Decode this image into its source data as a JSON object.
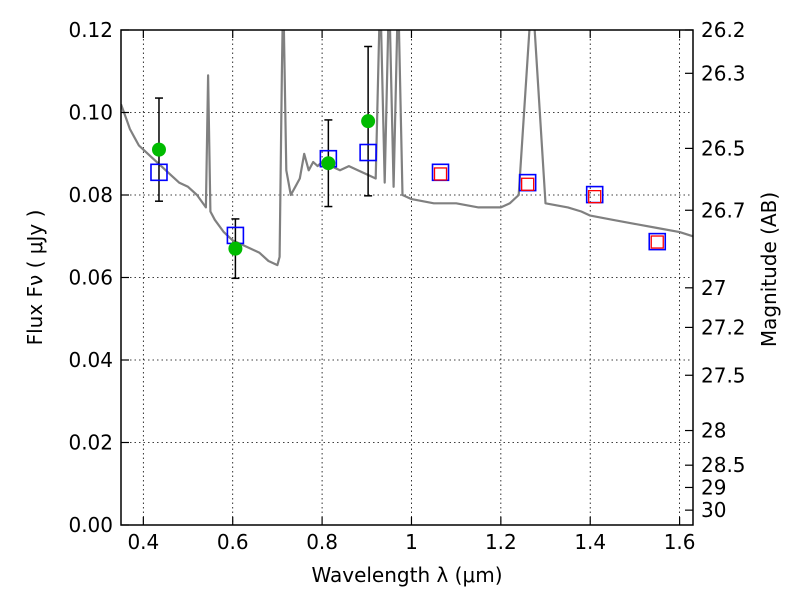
{
  "chart_data": {
    "type": "scatter",
    "xlabel": "Wavelength  λ (μm)",
    "ylabel": "Flux  Fν  ( μJy )",
    "ylabel_right": "Magnitude (AB)",
    "xlim": [
      0.35,
      1.63
    ],
    "ylim": [
      0.0,
      0.12
    ],
    "grid": true,
    "x_ticks": [
      0.4,
      0.6,
      0.8,
      1.0,
      1.2,
      1.4,
      1.6
    ],
    "x_tick_labels": [
      "0.4",
      "0.6",
      "0.8",
      "1",
      "1.2",
      "1.4",
      "1.6"
    ],
    "y_ticks": [
      0.0,
      0.02,
      0.04,
      0.06,
      0.08,
      0.1,
      0.12
    ],
    "y_tick_labels": [
      "0.00",
      "0.02",
      "0.04",
      "0.06",
      "0.08",
      "0.10",
      "0.12"
    ],
    "right_ticks": [
      {
        "label": "26.2",
        "flux": 0.12
      },
      {
        "label": "26.3",
        "flux": 0.1095
      },
      {
        "label": "26.5",
        "flux": 0.0913
      },
      {
        "label": "26.7",
        "flux": 0.0763
      },
      {
        "label": "27",
        "flux": 0.0575
      },
      {
        "label": "27.2",
        "flux": 0.0479
      },
      {
        "label": "27.5",
        "flux": 0.0363
      },
      {
        "label": "28",
        "flux": 0.0229
      },
      {
        "label": "28.5",
        "flux": 0.0145
      },
      {
        "label": "29",
        "flux": 0.0091
      },
      {
        "label": "30",
        "flux": 0.0036
      }
    ],
    "series": [
      {
        "kind": "model_spectrum",
        "color": "#808080",
        "x": [
          0.35,
          0.36,
          0.37,
          0.38,
          0.39,
          0.4,
          0.42,
          0.44,
          0.46,
          0.48,
          0.5,
          0.52,
          0.54,
          0.545,
          0.55,
          0.56,
          0.58,
          0.6,
          0.62,
          0.64,
          0.66,
          0.68,
          0.7,
          0.705,
          0.71,
          0.713,
          0.72,
          0.73,
          0.74,
          0.75,
          0.76,
          0.77,
          0.78,
          0.79,
          0.8,
          0.82,
          0.84,
          0.86,
          0.88,
          0.9,
          0.92,
          0.93,
          0.94,
          0.95,
          0.96,
          0.97,
          0.98,
          1.0,
          1.05,
          1.1,
          1.15,
          1.2,
          1.22,
          1.24,
          1.27,
          1.3,
          1.35,
          1.38,
          1.4,
          1.45,
          1.5,
          1.55,
          1.6,
          1.63
        ],
        "y": [
          0.102,
          0.099,
          0.096,
          0.094,
          0.092,
          0.091,
          0.089,
          0.087,
          0.085,
          0.083,
          0.082,
          0.08,
          0.077,
          0.109,
          0.076,
          0.074,
          0.071,
          0.069,
          0.068,
          0.067,
          0.066,
          0.064,
          0.063,
          0.065,
          0.11,
          0.13,
          0.086,
          0.08,
          0.082,
          0.084,
          0.09,
          0.086,
          0.088,
          0.087,
          0.088,
          0.087,
          0.086,
          0.087,
          0.086,
          0.085,
          0.084,
          0.13,
          0.083,
          0.13,
          0.082,
          0.13,
          0.08,
          0.079,
          0.078,
          0.078,
          0.077,
          0.077,
          0.078,
          0.08,
          0.13,
          0.078,
          0.077,
          0.076,
          0.075,
          0.074,
          0.073,
          0.072,
          0.071,
          0.07
        ]
      },
      {
        "kind": "observed_photometry",
        "marker": "filled_circle",
        "color": "#00bb00",
        "points": [
          {
            "x": 0.435,
            "y": 0.091,
            "err": 0.0125
          },
          {
            "x": 0.606,
            "y": 0.067,
            "err": 0.0072
          },
          {
            "x": 0.814,
            "y": 0.0877,
            "err": 0.0105
          },
          {
            "x": 0.903,
            "y": 0.0979,
            "err": 0.0181
          }
        ]
      },
      {
        "kind": "model_photometry",
        "marker": "open_square",
        "color": "#0000ff",
        "points": [
          {
            "x": 0.435,
            "y": 0.0855
          },
          {
            "x": 0.606,
            "y": 0.0702
          },
          {
            "x": 0.814,
            "y": 0.0888
          },
          {
            "x": 0.903,
            "y": 0.0903
          },
          {
            "x": 1.065,
            "y": 0.0855
          },
          {
            "x": 1.26,
            "y": 0.083
          },
          {
            "x": 1.41,
            "y": 0.0801
          },
          {
            "x": 1.55,
            "y": 0.0687
          }
        ]
      },
      {
        "kind": "model_photometry_inner",
        "marker": "open_square",
        "color": "#ff0000",
        "points": [
          {
            "x": 1.065,
            "y": 0.0851
          },
          {
            "x": 1.26,
            "y": 0.0826
          },
          {
            "x": 1.41,
            "y": 0.0796
          },
          {
            "x": 1.55,
            "y": 0.0686
          }
        ]
      }
    ]
  }
}
